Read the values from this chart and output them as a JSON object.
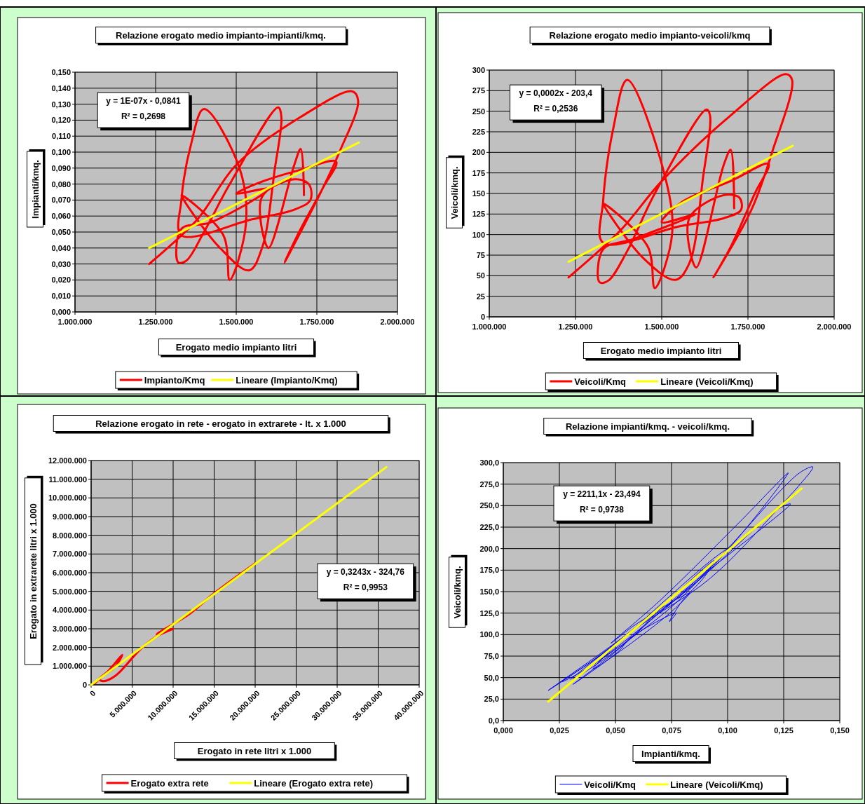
{
  "chart_data": [
    {
      "type": "line",
      "title": "Relazione erogato medio impianto-impianti/kmq.",
      "xlabel": "Erogato medio impianto litri",
      "ylabel": "Impianti/kmq.",
      "grid": true,
      "legend": "bottom",
      "annotations": [
        "y = 1E-07x - 0,0841",
        "R² = 0,2698"
      ],
      "xlim": [
        1000000,
        2000000
      ],
      "xticks": [
        {
          "value": 1000000,
          "label": "1.000.000"
        },
        {
          "value": 1250000,
          "label": "1.250.000"
        },
        {
          "value": 1500000,
          "label": "1.500.000"
        },
        {
          "value": 1750000,
          "label": "1.750.000"
        },
        {
          "value": 2000000,
          "label": "2.000.000"
        }
      ],
      "ylim": [
        0,
        0.15
      ],
      "yticks": [
        {
          "value": 0,
          "label": "0,000"
        },
        {
          "value": 0.01,
          "label": "0,010"
        },
        {
          "value": 0.02,
          "label": "0,020"
        },
        {
          "value": 0.03,
          "label": "0,030"
        },
        {
          "value": 0.04,
          "label": "0,040"
        },
        {
          "value": 0.05,
          "label": "0,050"
        },
        {
          "value": 0.06,
          "label": "0,060"
        },
        {
          "value": 0.07,
          "label": "0,070"
        },
        {
          "value": 0.08,
          "label": "0,080"
        },
        {
          "value": 0.09,
          "label": "0,090"
        },
        {
          "value": 0.1,
          "label": "0,100"
        },
        {
          "value": 0.11,
          "label": "0,110"
        },
        {
          "value": 0.12,
          "label": "0,120"
        },
        {
          "value": 0.13,
          "label": "0,130"
        },
        {
          "value": 0.14,
          "label": "0,140"
        },
        {
          "value": 0.15,
          "label": "0,150"
        }
      ],
      "series": [
        {
          "name": "Impianto/Kmq",
          "color": "#ff0000",
          "x": [
            1230000,
            1380000,
            1500000,
            1700000,
            1860000,
            1878000,
            1820000,
            1760000,
            1650000,
            1700000,
            1770000,
            1810000,
            1700000,
            1560000,
            1500000,
            1600000,
            1420000,
            1330000,
            1320000,
            1345000,
            1400000,
            1480000,
            1630000,
            1640000,
            1620000,
            1580000,
            1540000,
            1450000,
            1330000,
            1460000,
            1480000,
            1530000,
            1510000,
            1400000,
            1360000,
            1330000,
            1330000,
            1550000,
            1680000,
            1730000,
            1725000,
            1680000,
            1580000,
            1600000,
            1680000,
            1700000,
            1710000
          ],
          "values": [
            0.03,
            0.058,
            0.092,
            0.122,
            0.138,
            0.132,
            0.1,
            0.074,
            0.031,
            0.052,
            0.078,
            0.094,
            0.089,
            0.08,
            0.074,
            0.077,
            0.056,
            0.052,
            0.031,
            0.032,
            0.05,
            0.08,
            0.128,
            0.122,
            0.09,
            0.04,
            0.026,
            0.04,
            0.073,
            0.048,
            0.02,
            0.055,
            0.09,
            0.127,
            0.105,
            0.07,
            0.048,
            0.058,
            0.064,
            0.07,
            0.08,
            0.083,
            0.072,
            0.04,
            0.092,
            0.102,
            0.073
          ]
        },
        {
          "name": "Lineare (Impianto/Kmq)",
          "color": "#ffff00",
          "x": [
            1230000,
            1880000
          ],
          "values": [
            0.04,
            0.106
          ]
        }
      ]
    },
    {
      "type": "line",
      "title": "Relazione erogato medio impianto-veicoli/kmq",
      "xlabel": "Erogato medio impianto litri",
      "ylabel": "Veicoli/kmq.",
      "grid": true,
      "legend": "bottom",
      "annotations": [
        "y = 0,0002x - 203,4",
        "R² = 0,2536"
      ],
      "xlim": [
        1000000,
        2000000
      ],
      "xticks": [
        {
          "value": 1000000,
          "label": "1.000.000"
        },
        {
          "value": 1250000,
          "label": "1.250.000"
        },
        {
          "value": 1500000,
          "label": "1.500.000"
        },
        {
          "value": 1750000,
          "label": "1.750.000"
        },
        {
          "value": 2000000,
          "label": "2.000.000"
        }
      ],
      "ylim": [
        0,
        300
      ],
      "yticks": [
        0,
        25,
        50,
        75,
        100,
        125,
        150,
        175,
        200,
        225,
        250,
        275,
        300
      ],
      "series": [
        {
          "name": "Veicoli/Kmq",
          "color": "#ff0000",
          "x": [
            1230000,
            1380000,
            1500000,
            1700000,
            1860000,
            1878000,
            1820000,
            1760000,
            1650000,
            1700000,
            1770000,
            1810000,
            1700000,
            1560000,
            1500000,
            1600000,
            1420000,
            1330000,
            1320000,
            1345000,
            1400000,
            1480000,
            1630000,
            1640000,
            1620000,
            1580000,
            1540000,
            1450000,
            1330000,
            1460000,
            1480000,
            1530000,
            1510000,
            1400000,
            1360000,
            1330000,
            1330000,
            1550000,
            1680000,
            1730000,
            1725000,
            1680000,
            1580000,
            1600000,
            1680000,
            1700000,
            1710000
          ],
          "values": [
            48,
            105,
            165,
            245,
            295,
            288,
            200,
            130,
            48,
            85,
            150,
            186,
            165,
            140,
            115,
            125,
            95,
            82,
            42,
            44,
            80,
            150,
            252,
            245,
            170,
            65,
            45,
            70,
            138,
            85,
            35,
            100,
            170,
            288,
            230,
            140,
            90,
            110,
            120,
            130,
            145,
            148,
            120,
            60,
            185,
            203,
            132
          ]
        },
        {
          "name": "Lineare (Veicoli/Kmq)",
          "color": "#ffff00",
          "x": [
            1230000,
            1880000
          ],
          "values": [
            67,
            208
          ]
        }
      ]
    },
    {
      "type": "line",
      "title": "Relazione erogato in rete - erogato in extrarete - lt. x 1.000",
      "xlabel": "Erogato in rete litri x 1.000",
      "ylabel": "Erogato in extrarete litri x 1.000",
      "grid": true,
      "legend": "bottom",
      "annotations": [
        "y = 0,3243x - 324,76",
        "R² = 0,9953"
      ],
      "xlim": [
        0,
        40000000
      ],
      "xticks": [
        0,
        {
          "value": 5000000,
          "label": "5.000.000"
        },
        {
          "value": 10000000,
          "label": "10.000.000"
        },
        {
          "value": 15000000,
          "label": "15.000.000"
        },
        {
          "value": 20000000,
          "label": "20.000.000"
        },
        {
          "value": 25000000,
          "label": "25.000.000"
        },
        {
          "value": 30000000,
          "label": "30.000.000"
        },
        {
          "value": 35000000,
          "label": "35.000.000"
        },
        {
          "value": 40000000,
          "label": "40.000.000"
        }
      ],
      "ylim": [
        0,
        12000000
      ],
      "yticks": [
        0,
        {
          "value": 1000000,
          "label": "1.000.000"
        },
        {
          "value": 2000000,
          "label": "2.000.000"
        },
        {
          "value": 3000000,
          "label": "3.000.000"
        },
        {
          "value": 4000000,
          "label": "4.000.000"
        },
        {
          "value": 5000000,
          "label": "5.000.000"
        },
        {
          "value": 6000000,
          "label": "6.000.000"
        },
        {
          "value": 7000000,
          "label": "7.000.000"
        },
        {
          "value": 8000000,
          "label": "8.000.000"
        },
        {
          "value": 9000000,
          "label": "9.000.000"
        },
        {
          "value": 10000000,
          "label": "10.000.000"
        },
        {
          "value": 11000000,
          "label": "11.000.000"
        },
        {
          "value": 12000000,
          "label": "12.000.000"
        }
      ],
      "series": [
        {
          "name": "Erogato extra rete",
          "color": "#ff0000",
          "x": [
            500000,
            1500000,
            2500000,
            3000000,
            3800000,
            2000000,
            1000000,
            1500000,
            3000000,
            6000000,
            8000000,
            10000000,
            8000000,
            12000000,
            15000000,
            20000000
          ],
          "values": [
            100000,
            500000,
            800000,
            1000000,
            1600000,
            700000,
            300000,
            200000,
            500000,
            1900000,
            2600000,
            3000000,
            2700000,
            3800000,
            4900000,
            6500000
          ]
        },
        {
          "name": "Lineare (Erogato extra rete)",
          "color": "#ffff00",
          "x": [
            0,
            36000000
          ],
          "values": [
            0,
            11650000
          ]
        }
      ]
    },
    {
      "type": "line",
      "title": "Relazione impianti/kmq. - veicoli/kmq.",
      "xlabel": "Impianti/kmq.",
      "ylabel": "Veicoli/kmq.",
      "grid": true,
      "legend": "bottom",
      "annotations": [
        "y = 2211,1x - 23,494",
        "R² = 0,9738"
      ],
      "xlim": [
        0,
        0.15
      ],
      "xticks": [
        {
          "value": 0,
          "label": "0,000"
        },
        {
          "value": 0.025,
          "label": "0,025"
        },
        {
          "value": 0.05,
          "label": "0,050"
        },
        {
          "value": 0.075,
          "label": "0,075"
        },
        {
          "value": 0.1,
          "label": "0,100"
        },
        {
          "value": 0.125,
          "label": "0,125"
        },
        {
          "value": 0.15,
          "label": "0,150"
        }
      ],
      "ylim": [
        0,
        300
      ],
      "yticks": [
        {
          "value": 0,
          "label": "0,0"
        },
        {
          "value": 25,
          "label": "25,0"
        },
        {
          "value": 50,
          "label": "50,0"
        },
        {
          "value": 75,
          "label": "75,0"
        },
        {
          "value": 100,
          "label": "100,0"
        },
        {
          "value": 125,
          "label": "125,0"
        },
        {
          "value": 150,
          "label": "150,0"
        },
        {
          "value": 175,
          "label": "175,0"
        },
        {
          "value": 200,
          "label": "200,0"
        },
        {
          "value": 225,
          "label": "225,0"
        },
        {
          "value": 250,
          "label": "250,0"
        },
        {
          "value": 275,
          "label": "275,0"
        },
        {
          "value": 300,
          "label": "300,0"
        }
      ],
      "series": [
        {
          "name": "Veicoli/Kmq",
          "color": "#0000ff",
          "x": [
            0.03,
            0.058,
            0.092,
            0.122,
            0.138,
            0.132,
            0.1,
            0.074,
            0.031,
            0.052,
            0.078,
            0.094,
            0.089,
            0.08,
            0.074,
            0.077,
            0.056,
            0.052,
            0.031,
            0.032,
            0.05,
            0.08,
            0.128,
            0.122,
            0.09,
            0.04,
            0.026,
            0.04,
            0.073,
            0.048,
            0.02,
            0.055,
            0.09,
            0.127,
            0.105,
            0.07,
            0.048,
            0.058,
            0.064,
            0.07,
            0.08,
            0.083,
            0.072,
            0.04,
            0.092,
            0.102,
            0.073
          ],
          "values": [
            48,
            105,
            165,
            245,
            295,
            288,
            200,
            130,
            48,
            85,
            150,
            186,
            165,
            140,
            115,
            125,
            95,
            82,
            42,
            44,
            80,
            150,
            252,
            245,
            170,
            65,
            45,
            70,
            138,
            85,
            35,
            100,
            170,
            288,
            230,
            140,
            90,
            110,
            120,
            130,
            145,
            148,
            120,
            60,
            185,
            203,
            132
          ]
        },
        {
          "name": "Lineare (Veicoli/Kmq)",
          "color": "#ffff00",
          "x": [
            0.02,
            0.133
          ],
          "values": [
            22,
            270
          ]
        }
      ]
    }
  ]
}
